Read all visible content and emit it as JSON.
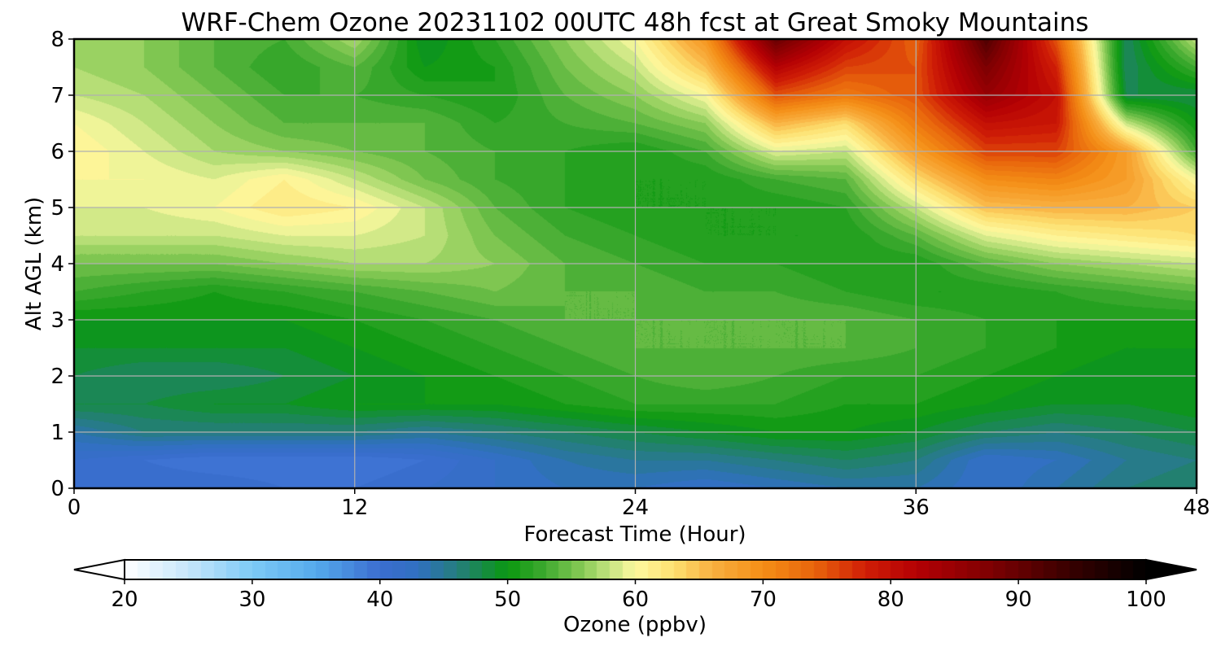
{
  "chart_data": {
    "type": "heatmap",
    "title": "WRF-Chem Ozone  20231102 00UTC 48h fcst at Great Smoky Mountains",
    "xlabel": "Forecast Time (Hour)",
    "ylabel": "Alt AGL (km)",
    "xlim": [
      0,
      48
    ],
    "ylim": [
      0,
      8
    ],
    "x_ticks": [
      0,
      12,
      24,
      36,
      48
    ],
    "y_ticks": [
      0,
      1,
      2,
      3,
      4,
      5,
      6,
      7,
      8
    ],
    "grid": true,
    "x": [
      0,
      3,
      6,
      9,
      12,
      15,
      18,
      21,
      24,
      27,
      30,
      33,
      36,
      39,
      42,
      45,
      48
    ],
    "y": [
      0,
      0.5,
      1,
      1.5,
      2,
      2.5,
      3,
      3.5,
      4,
      4.5,
      5,
      5.5,
      6,
      6.5,
      7,
      7.5,
      8
    ],
    "z": [
      [
        40,
        41,
        41,
        40,
        40,
        41,
        42,
        43,
        43,
        42,
        43,
        44,
        44,
        42,
        44,
        46,
        47
      ],
      [
        41,
        40,
        39,
        39,
        39,
        40,
        42,
        44,
        45,
        45,
        46,
        47,
        46,
        42,
        43,
        45,
        46
      ],
      [
        44,
        46,
        46,
        46,
        46,
        45,
        46,
        47,
        48,
        49,
        50,
        50,
        49,
        47,
        46,
        47,
        48
      ],
      [
        48,
        48,
        49,
        49,
        50,
        50,
        50,
        51,
        52,
        52,
        52,
        51,
        51,
        50,
        49,
        49,
        50
      ],
      [
        48,
        47,
        47,
        48,
        49,
        50,
        51,
        52,
        53,
        54,
        53,
        52,
        52,
        51,
        50,
        49,
        49
      ],
      [
        49,
        49,
        49,
        49,
        50,
        51,
        52,
        53,
        54,
        54,
        54,
        54,
        53,
        52,
        51,
        50,
        50
      ],
      [
        50,
        50,
        50,
        50,
        51,
        52,
        53,
        54,
        54,
        54,
        54,
        54,
        53,
        52,
        51,
        51,
        51
      ],
      [
        53,
        52,
        51,
        52,
        53,
        54,
        55,
        54,
        54,
        53,
        53,
        52,
        51,
        51,
        52,
        53,
        54
      ],
      [
        55,
        55,
        55,
        56,
        57,
        57,
        56,
        54,
        53,
        52,
        52,
        51,
        51,
        54,
        56,
        57,
        58
      ],
      [
        58,
        58,
        58,
        59,
        59,
        58,
        55,
        53,
        52,
        51,
        51,
        51,
        54,
        59,
        61,
        62,
        63
      ],
      [
        59,
        59,
        60,
        62,
        61,
        58,
        54,
        52,
        51,
        51,
        51,
        52,
        58,
        65,
        66,
        66,
        64
      ],
      [
        60,
        60,
        59,
        61,
        58,
        55,
        53,
        52,
        51,
        51,
        53,
        54,
        63,
        70,
        71,
        68,
        60
      ],
      [
        61,
        59,
        57,
        56,
        55,
        54,
        53,
        52,
        51,
        53,
        59,
        58,
        68,
        76,
        76,
        68,
        53
      ],
      [
        60,
        58,
        56,
        54,
        54,
        54,
        52,
        53,
        54,
        56,
        66,
        63,
        72,
        80,
        79,
        58,
        50
      ],
      [
        58,
        57,
        55,
        53,
        53,
        52,
        51,
        54,
        56,
        60,
        75,
        72,
        75,
        85,
        80,
        48,
        48
      ],
      [
        57,
        56,
        54,
        52,
        54,
        50,
        51,
        55,
        58,
        65,
        82,
        76,
        75,
        88,
        78,
        47,
        53
      ],
      [
        56,
        56,
        54,
        53,
        57,
        49,
        52,
        56,
        60,
        69,
        90,
        80,
        74,
        92,
        75,
        47,
        58
      ]
    ]
  },
  "colorbar": {
    "label": "Ozone  (ppbv)",
    "min": 20,
    "max": 100,
    "ticks": [
      "20",
      "30",
      "40",
      "50",
      "60",
      "70",
      "80",
      "90",
      "100"
    ],
    "tick_values": [
      20,
      30,
      40,
      50,
      60,
      70,
      80,
      90,
      100
    ],
    "extend": "both",
    "color_stops": [
      [
        20,
        "#ffffff"
      ],
      [
        25,
        "#c6e6fb"
      ],
      [
        30,
        "#7dcaf6"
      ],
      [
        35,
        "#55aaec"
      ],
      [
        40,
        "#3b6dd0"
      ],
      [
        43,
        "#3070c0"
      ],
      [
        46,
        "#257d7e"
      ],
      [
        50,
        "#0a9810"
      ],
      [
        53,
        "#40aa30"
      ],
      [
        56,
        "#8ccc58"
      ],
      [
        58,
        "#c4e480"
      ],
      [
        60,
        "#fdf9a0"
      ],
      [
        63,
        "#fde070"
      ],
      [
        66,
        "#f9b040"
      ],
      [
        70,
        "#f48e16"
      ],
      [
        74,
        "#e8650c"
      ],
      [
        78,
        "#d01e06"
      ],
      [
        82,
        "#b40004"
      ],
      [
        88,
        "#7c0002"
      ],
      [
        94,
        "#380000"
      ],
      [
        100,
        "#000000"
      ]
    ]
  }
}
